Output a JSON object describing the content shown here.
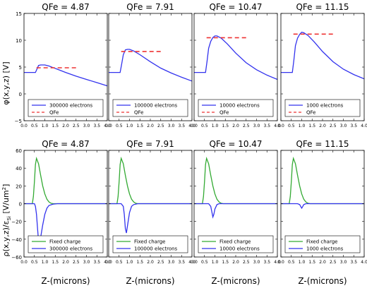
{
  "figure": {
    "top_ylabel": "φ(x,y,z) [V]",
    "bottom_ylabel": "ρ(x,y,z)/ε",
    "bottom_ylabel_sub": "Si",
    "bottom_ylabel_tail": " [V/um",
    "bottom_ylabel_sup": "2",
    "bottom_ylabel_end": "]",
    "xlabel": "Z-(microns)"
  },
  "colors": {
    "potential": "#3333ee",
    "qfe": "#ee3333",
    "charge": "#33aa33",
    "electrons": "#3333ee",
    "axis": "#000000"
  },
  "chart_data": [
    {
      "type": "line",
      "title": "QFe = 4.87",
      "row": "potential",
      "xlabel": "",
      "ylabel": "φ(x,y,z) [V]",
      "xlim": [
        0.0,
        4.0
      ],
      "ylim": [
        -5,
        15
      ],
      "xticks": [
        "0.0",
        "0.5",
        "1.0",
        "1.5",
        "2.0",
        "2.5",
        "3.0",
        "3.5",
        "4.0"
      ],
      "yticks": [
        "−5",
        "0",
        "5",
        "10",
        "15"
      ],
      "legend": {
        "placement": "lower-center",
        "entries": [
          "300000 electrons",
          "QFe"
        ]
      },
      "series": [
        {
          "name": "300000 electrons",
          "x": [
            0,
            0.55,
            0.62,
            0.7,
            0.8,
            1.0,
            1.2,
            1.4,
            1.6,
            2.0,
            2.5,
            3.0,
            3.5,
            4.0
          ],
          "values": [
            4.0,
            4.0,
            4.6,
            5.3,
            5.4,
            5.4,
            5.2,
            4.9,
            4.6,
            4.0,
            3.3,
            2.7,
            2.1,
            1.5
          ]
        },
        {
          "name": "QFe",
          "x": [
            0.6,
            2.6
          ],
          "values": [
            4.87,
            4.87
          ],
          "dashed": true
        }
      ]
    },
    {
      "type": "line",
      "title": "QFe = 7.91",
      "row": "potential",
      "xlabel": "",
      "ylabel": "",
      "xlim": [
        0.0,
        4.0
      ],
      "ylim": [
        -5,
        15
      ],
      "xticks": [
        "0.0",
        "0.5",
        "1.0",
        "1.5",
        "2.0",
        "2.5",
        "3.0",
        "3.5",
        "4.0"
      ],
      "yticks": [],
      "legend": {
        "placement": "lower-center",
        "entries": [
          "100000 electrons",
          "QFe"
        ]
      },
      "series": [
        {
          "name": "100000 electrons",
          "x": [
            0,
            0.55,
            0.62,
            0.7,
            0.8,
            0.9,
            1.0,
            1.2,
            1.5,
            2.0,
            2.5,
            3.0,
            3.5,
            4.0
          ],
          "values": [
            4.0,
            4.0,
            5.5,
            7.3,
            8.2,
            8.3,
            8.3,
            8.0,
            7.3,
            6.0,
            4.8,
            3.9,
            3.1,
            2.4
          ]
        },
        {
          "name": "QFe",
          "x": [
            0.6,
            2.6
          ],
          "values": [
            7.91,
            7.91
          ],
          "dashed": true
        }
      ]
    },
    {
      "type": "line",
      "title": "QFe = 10.47",
      "row": "potential",
      "xlabel": "",
      "ylabel": "",
      "xlim": [
        0.0,
        4.0
      ],
      "ylim": [
        -5,
        15
      ],
      "xticks": [
        "0.0",
        "0.5",
        "1.0",
        "1.5",
        "2.0",
        "2.5",
        "3.0",
        "3.5",
        "4.0"
      ],
      "yticks": [],
      "legend": {
        "placement": "lower-center",
        "entries": [
          "10000 electrons",
          "QFe"
        ]
      },
      "series": [
        {
          "name": "10000 electrons",
          "x": [
            0,
            0.55,
            0.62,
            0.7,
            0.8,
            0.9,
            1.0,
            1.1,
            1.3,
            1.6,
            2.0,
            2.5,
            3.0,
            3.5,
            4.0
          ],
          "values": [
            4.0,
            4.0,
            6.0,
            8.5,
            9.8,
            10.5,
            10.8,
            10.8,
            10.4,
            9.3,
            7.6,
            5.8,
            4.5,
            3.5,
            2.7
          ]
        },
        {
          "name": "QFe",
          "x": [
            0.6,
            2.6
          ],
          "values": [
            10.47,
            10.47
          ],
          "dashed": true
        }
      ]
    },
    {
      "type": "line",
      "title": "QFe = 11.15",
      "row": "potential",
      "xlabel": "",
      "ylabel": "",
      "xlim": [
        0.0,
        4.0
      ],
      "ylim": [
        -5,
        15
      ],
      "xticks": [
        "0.0",
        "0.5",
        "1.0",
        "1.5",
        "2.0",
        "2.5",
        "3.0",
        "3.5",
        "4.0"
      ],
      "yticks": [],
      "legend": {
        "placement": "lower-center",
        "entries": [
          "1000 electrons",
          "QFe"
        ]
      },
      "series": [
        {
          "name": "1000 electrons",
          "x": [
            0,
            0.55,
            0.62,
            0.7,
            0.8,
            0.9,
            1.0,
            1.1,
            1.3,
            1.6,
            2.0,
            2.5,
            3.0,
            3.5,
            4.0
          ],
          "values": [
            4.0,
            4.0,
            6.2,
            9.0,
            10.4,
            11.1,
            11.5,
            11.4,
            10.9,
            9.7,
            7.9,
            6.0,
            4.6,
            3.6,
            2.8
          ]
        },
        {
          "name": "QFe",
          "x": [
            0.6,
            2.6
          ],
          "values": [
            11.15,
            11.15
          ],
          "dashed": true
        }
      ]
    },
    {
      "type": "line",
      "title": "QFe = 4.87",
      "row": "charge",
      "xlabel": "Z-(microns)",
      "ylabel": "ρ(x,y,z)/εSi [V/um2]",
      "xlim": [
        0.0,
        4.0
      ],
      "ylim": [
        -60,
        60
      ],
      "xticks": [
        "0.0",
        "0.5",
        "1.0",
        "1.5",
        "2.0",
        "2.5",
        "3.0",
        "3.5",
        "4.0"
      ],
      "yticks": [
        "−60",
        "−40",
        "−20",
        "0",
        "20",
        "40",
        "60"
      ],
      "legend": {
        "placement": "lower-center",
        "entries": [
          "Fixed charge",
          "300000 electrons"
        ]
      },
      "series": [
        {
          "name": "Fixed charge",
          "x": [
            0,
            0.4,
            0.45,
            0.5,
            0.55,
            0.6,
            0.7,
            0.8,
            0.9,
            1.0,
            1.1,
            1.2,
            1.3,
            1.4,
            1.6,
            4.0
          ],
          "values": [
            0,
            0,
            8,
            25,
            44,
            51,
            45,
            32,
            20,
            11,
            5,
            2,
            0.5,
            0,
            0,
            0
          ]
        },
        {
          "name": "300000 electrons",
          "x": [
            0,
            0.5,
            0.55,
            0.6,
            0.65,
            0.7,
            0.8,
            0.9,
            1.0,
            1.1,
            1.2,
            1.4,
            1.6,
            4.0
          ],
          "values": [
            0,
            0,
            -3,
            -12,
            -28,
            -42,
            -38,
            -24,
            -12,
            -5,
            -2,
            -0.5,
            0,
            0
          ]
        }
      ]
    },
    {
      "type": "line",
      "title": "QFe = 7.91",
      "row": "charge",
      "xlabel": "Z-(microns)",
      "ylabel": "",
      "xlim": [
        0.0,
        4.0
      ],
      "ylim": [
        -60,
        60
      ],
      "xticks": [
        "0.0",
        "0.5",
        "1.0",
        "1.5",
        "2.0",
        "2.5",
        "3.0",
        "3.5",
        "4.0"
      ],
      "yticks": [],
      "legend": {
        "placement": "lower-center",
        "entries": [
          "Fixed charge",
          "100000 electrons"
        ]
      },
      "series": [
        {
          "name": "Fixed charge",
          "x": [
            0,
            0.4,
            0.45,
            0.5,
            0.55,
            0.6,
            0.7,
            0.8,
            0.9,
            1.0,
            1.1,
            1.2,
            1.3,
            1.4,
            1.6,
            4.0
          ],
          "values": [
            0,
            0,
            8,
            25,
            44,
            51,
            45,
            32,
            20,
            11,
            5,
            2,
            0.5,
            0,
            0,
            0
          ]
        },
        {
          "name": "100000 electrons",
          "x": [
            0,
            0.6,
            0.7,
            0.75,
            0.8,
            0.85,
            0.9,
            1.0,
            1.1,
            1.2,
            1.4,
            4.0
          ],
          "values": [
            0,
            0,
            -3,
            -12,
            -28,
            -33,
            -25,
            -10,
            -3,
            -1,
            0,
            0
          ]
        }
      ]
    },
    {
      "type": "line",
      "title": "QFe = 10.47",
      "row": "charge",
      "xlabel": "Z-(microns)",
      "ylabel": "",
      "xlim": [
        0.0,
        4.0
      ],
      "ylim": [
        -60,
        60
      ],
      "xticks": [
        "0.0",
        "0.5",
        "1.0",
        "1.5",
        "2.0",
        "2.5",
        "3.0",
        "3.5",
        "4.0"
      ],
      "yticks": [],
      "legend": {
        "placement": "lower-center",
        "entries": [
          "Fixed charge",
          "10000 electrons"
        ]
      },
      "series": [
        {
          "name": "Fixed charge",
          "x": [
            0,
            0.4,
            0.45,
            0.5,
            0.55,
            0.6,
            0.7,
            0.8,
            0.9,
            1.0,
            1.1,
            1.2,
            1.3,
            1.4,
            1.6,
            4.0
          ],
          "values": [
            0,
            0,
            8,
            25,
            44,
            51,
            45,
            32,
            20,
            11,
            5,
            2,
            0.5,
            0,
            0,
            0
          ]
        },
        {
          "name": "10000 electrons",
          "x": [
            0,
            0.7,
            0.8,
            0.85,
            0.9,
            0.95,
            1.0,
            1.1,
            1.2,
            4.0
          ],
          "values": [
            0,
            0,
            -3,
            -9,
            -15,
            -12,
            -6,
            -1,
            0,
            0
          ]
        }
      ]
    },
    {
      "type": "line",
      "title": "QFe = 11.15",
      "row": "charge",
      "xlabel": "Z-(microns)",
      "ylabel": "",
      "xlim": [
        0.0,
        4.0
      ],
      "ylim": [
        -60,
        60
      ],
      "xticks": [
        "0.0",
        "0.5",
        "1.0",
        "1.5",
        "2.0",
        "2.5",
        "3.0",
        "3.5",
        "4.0"
      ],
      "yticks": [],
      "legend": {
        "placement": "lower-center",
        "entries": [
          "Fixed charge",
          "1000 electrons"
        ]
      },
      "series": [
        {
          "name": "Fixed charge",
          "x": [
            0,
            0.4,
            0.45,
            0.5,
            0.55,
            0.6,
            0.7,
            0.8,
            0.9,
            1.0,
            1.1,
            1.2,
            1.3,
            1.4,
            1.6,
            4.0
          ],
          "values": [
            0,
            0,
            8,
            25,
            44,
            51,
            45,
            32,
            20,
            11,
            5,
            2,
            0.5,
            0,
            0,
            0
          ]
        },
        {
          "name": "1000 electrons",
          "x": [
            0,
            0.8,
            0.9,
            0.95,
            1.0,
            1.05,
            1.1,
            1.2,
            4.0
          ],
          "values": [
            0,
            0,
            -1,
            -3,
            -5,
            -3,
            -1,
            0,
            0
          ]
        }
      ]
    }
  ]
}
